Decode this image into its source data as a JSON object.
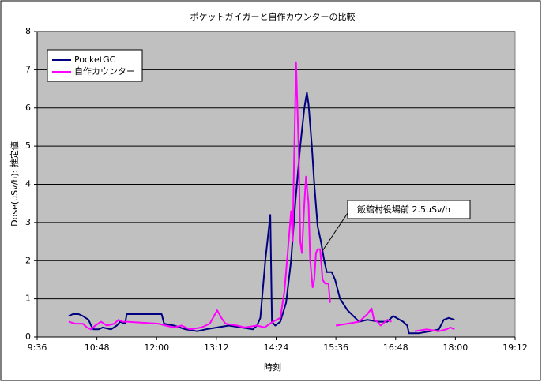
{
  "chart_data": {
    "type": "line",
    "title": "ポケットガイガーと自作カウンターの比較",
    "x_label": "時刻",
    "y_label": "Dose(uSv/h): 推定値",
    "annotation": "飯舘村役場前  2.5uSv/h",
    "xlim": [
      576,
      1152
    ],
    "xticks": [
      {
        "value": 576,
        "label": "9:36"
      },
      {
        "value": 648,
        "label": "10:48"
      },
      {
        "value": 720,
        "label": "12:00"
      },
      {
        "value": 792,
        "label": "13:12"
      },
      {
        "value": 864,
        "label": "14:24"
      },
      {
        "value": 936,
        "label": "15:36"
      },
      {
        "value": 1008,
        "label": "16:48"
      },
      {
        "value": 1080,
        "label": "18:00"
      },
      {
        "value": 1152,
        "label": "19:12"
      }
    ],
    "ylim": [
      0,
      8
    ],
    "yticks": [
      0,
      1,
      2,
      3,
      4,
      5,
      6,
      7,
      8
    ],
    "grid": true,
    "legend": "top-left",
    "series": [
      {
        "name": "PocketGC",
        "color": "#000080",
        "x": [
          614,
          619,
          626,
          631,
          638,
          641,
          644,
          650,
          655,
          665,
          672,
          676,
          682,
          684,
          726,
          729,
          741,
          755,
          769,
          779,
          793,
          807,
          822,
          836,
          841,
          845,
          851,
          857,
          859,
          863,
          869,
          876,
          882,
          887,
          893,
          898,
          901,
          903,
          907,
          910,
          914,
          918,
          922,
          925,
          931,
          935,
          941,
          950,
          964,
          974,
          988,
          998,
          1005,
          1017,
          1022,
          1024,
          1036,
          1050,
          1060,
          1066,
          1072,
          1079
        ],
        "values": [
          0.55,
          0.6,
          0.6,
          0.55,
          0.45,
          0.3,
          0.2,
          0.2,
          0.25,
          0.2,
          0.3,
          0.4,
          0.35,
          0.6,
          0.6,
          0.35,
          0.3,
          0.2,
          0.15,
          0.2,
          0.25,
          0.3,
          0.25,
          0.2,
          0.3,
          0.5,
          2,
          3.2,
          0.4,
          0.3,
          0.4,
          0.9,
          2,
          3.5,
          5,
          6,
          6.4,
          6.1,
          5,
          4,
          2.9,
          2.5,
          2,
          1.7,
          1.7,
          1.5,
          1,
          0.7,
          0.4,
          0.45,
          0.4,
          0.4,
          0.55,
          0.4,
          0.3,
          0.1,
          0.1,
          0.15,
          0.2,
          0.45,
          0.5,
          0.45
        ]
      },
      {
        "name": "自作カウンター",
        "color": "#ff00ff",
        "x": [
          614,
          622,
          631,
          636,
          641,
          646,
          653,
          660,
          669,
          674,
          679,
          684,
          722,
          731,
          741,
          750,
          760,
          774,
          784,
          793,
          798,
          803,
          817,
          826,
          841,
          850,
          860,
          869,
          874,
          879,
          882,
          884,
          885,
          888,
          891,
          893,
          895,
          898,
          900,
          903,
          905,
          908,
          910,
          912,
          914,
          917,
          920,
          923,
          927,
          929,
          932,
          936,
          950,
          964,
          974,
          979,
          982,
          986,
          990,
          998,
          1003,
          1017,
          1031,
          1045,
          1060,
          1069,
          1074,
          1079
        ],
        "values": [
          0.4,
          0.35,
          0.35,
          0.25,
          0.2,
          0.3,
          0.4,
          0.3,
          0.35,
          0.45,
          0.4,
          0.4,
          0.35,
          0.3,
          0.25,
          0.3,
          0.2,
          0.25,
          0.35,
          0.7,
          0.5,
          0.35,
          0.3,
          0.25,
          0.3,
          0.25,
          0.4,
          0.5,
          1.2,
          2.5,
          3.3,
          2.5,
          4,
          7.2,
          5,
          2.5,
          2.2,
          3.5,
          4.2,
          3.5,
          2,
          1.3,
          1.5,
          2.2,
          2.3,
          2.3,
          1.5,
          1.4,
          1.4,
          0.9,
          null,
          0.3,
          0.35,
          0.4,
          0.6,
          0.75,
          0.45,
          0.4,
          0.3,
          0.45,
          0.4,
          null,
          0.15,
          0.2,
          0.15,
          0.2,
          0.25,
          0.2
        ]
      }
    ]
  }
}
